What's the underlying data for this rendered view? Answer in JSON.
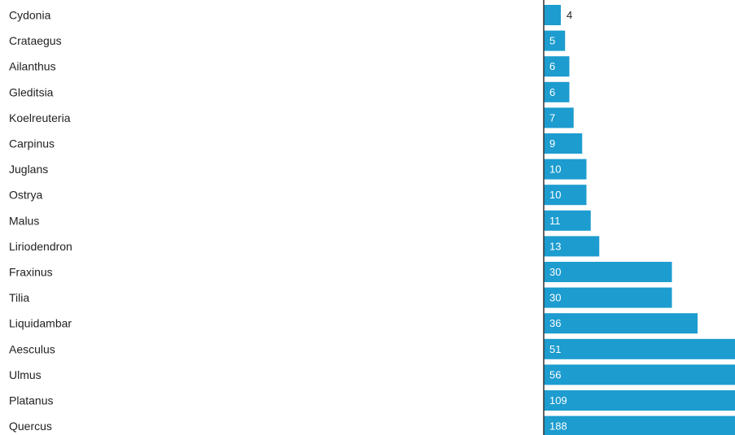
{
  "chart_data": {
    "type": "bar",
    "orientation": "horizontal",
    "categories": [
      "Cydonia",
      "Crataegus",
      "Ailanthus",
      "Gleditsia",
      "Koelreuteria",
      "Carpinus",
      "Juglans",
      "Ostrya",
      "Malus",
      "Liriodendron",
      "Fraxinus",
      "Tilia",
      "Liquidambar",
      "Aesculus",
      "Ulmus",
      "Platanus",
      "Quercus"
    ],
    "values": [
      4,
      5,
      6,
      6,
      7,
      9,
      10,
      10,
      11,
      13,
      30,
      30,
      36,
      51,
      56,
      109,
      188
    ],
    "grid": false,
    "legend": "none",
    "bar_color": "#1c9ccf",
    "inside_label_color": "#ffffff",
    "outside_label_color": "#222222",
    "axis_color": "#333333"
  }
}
